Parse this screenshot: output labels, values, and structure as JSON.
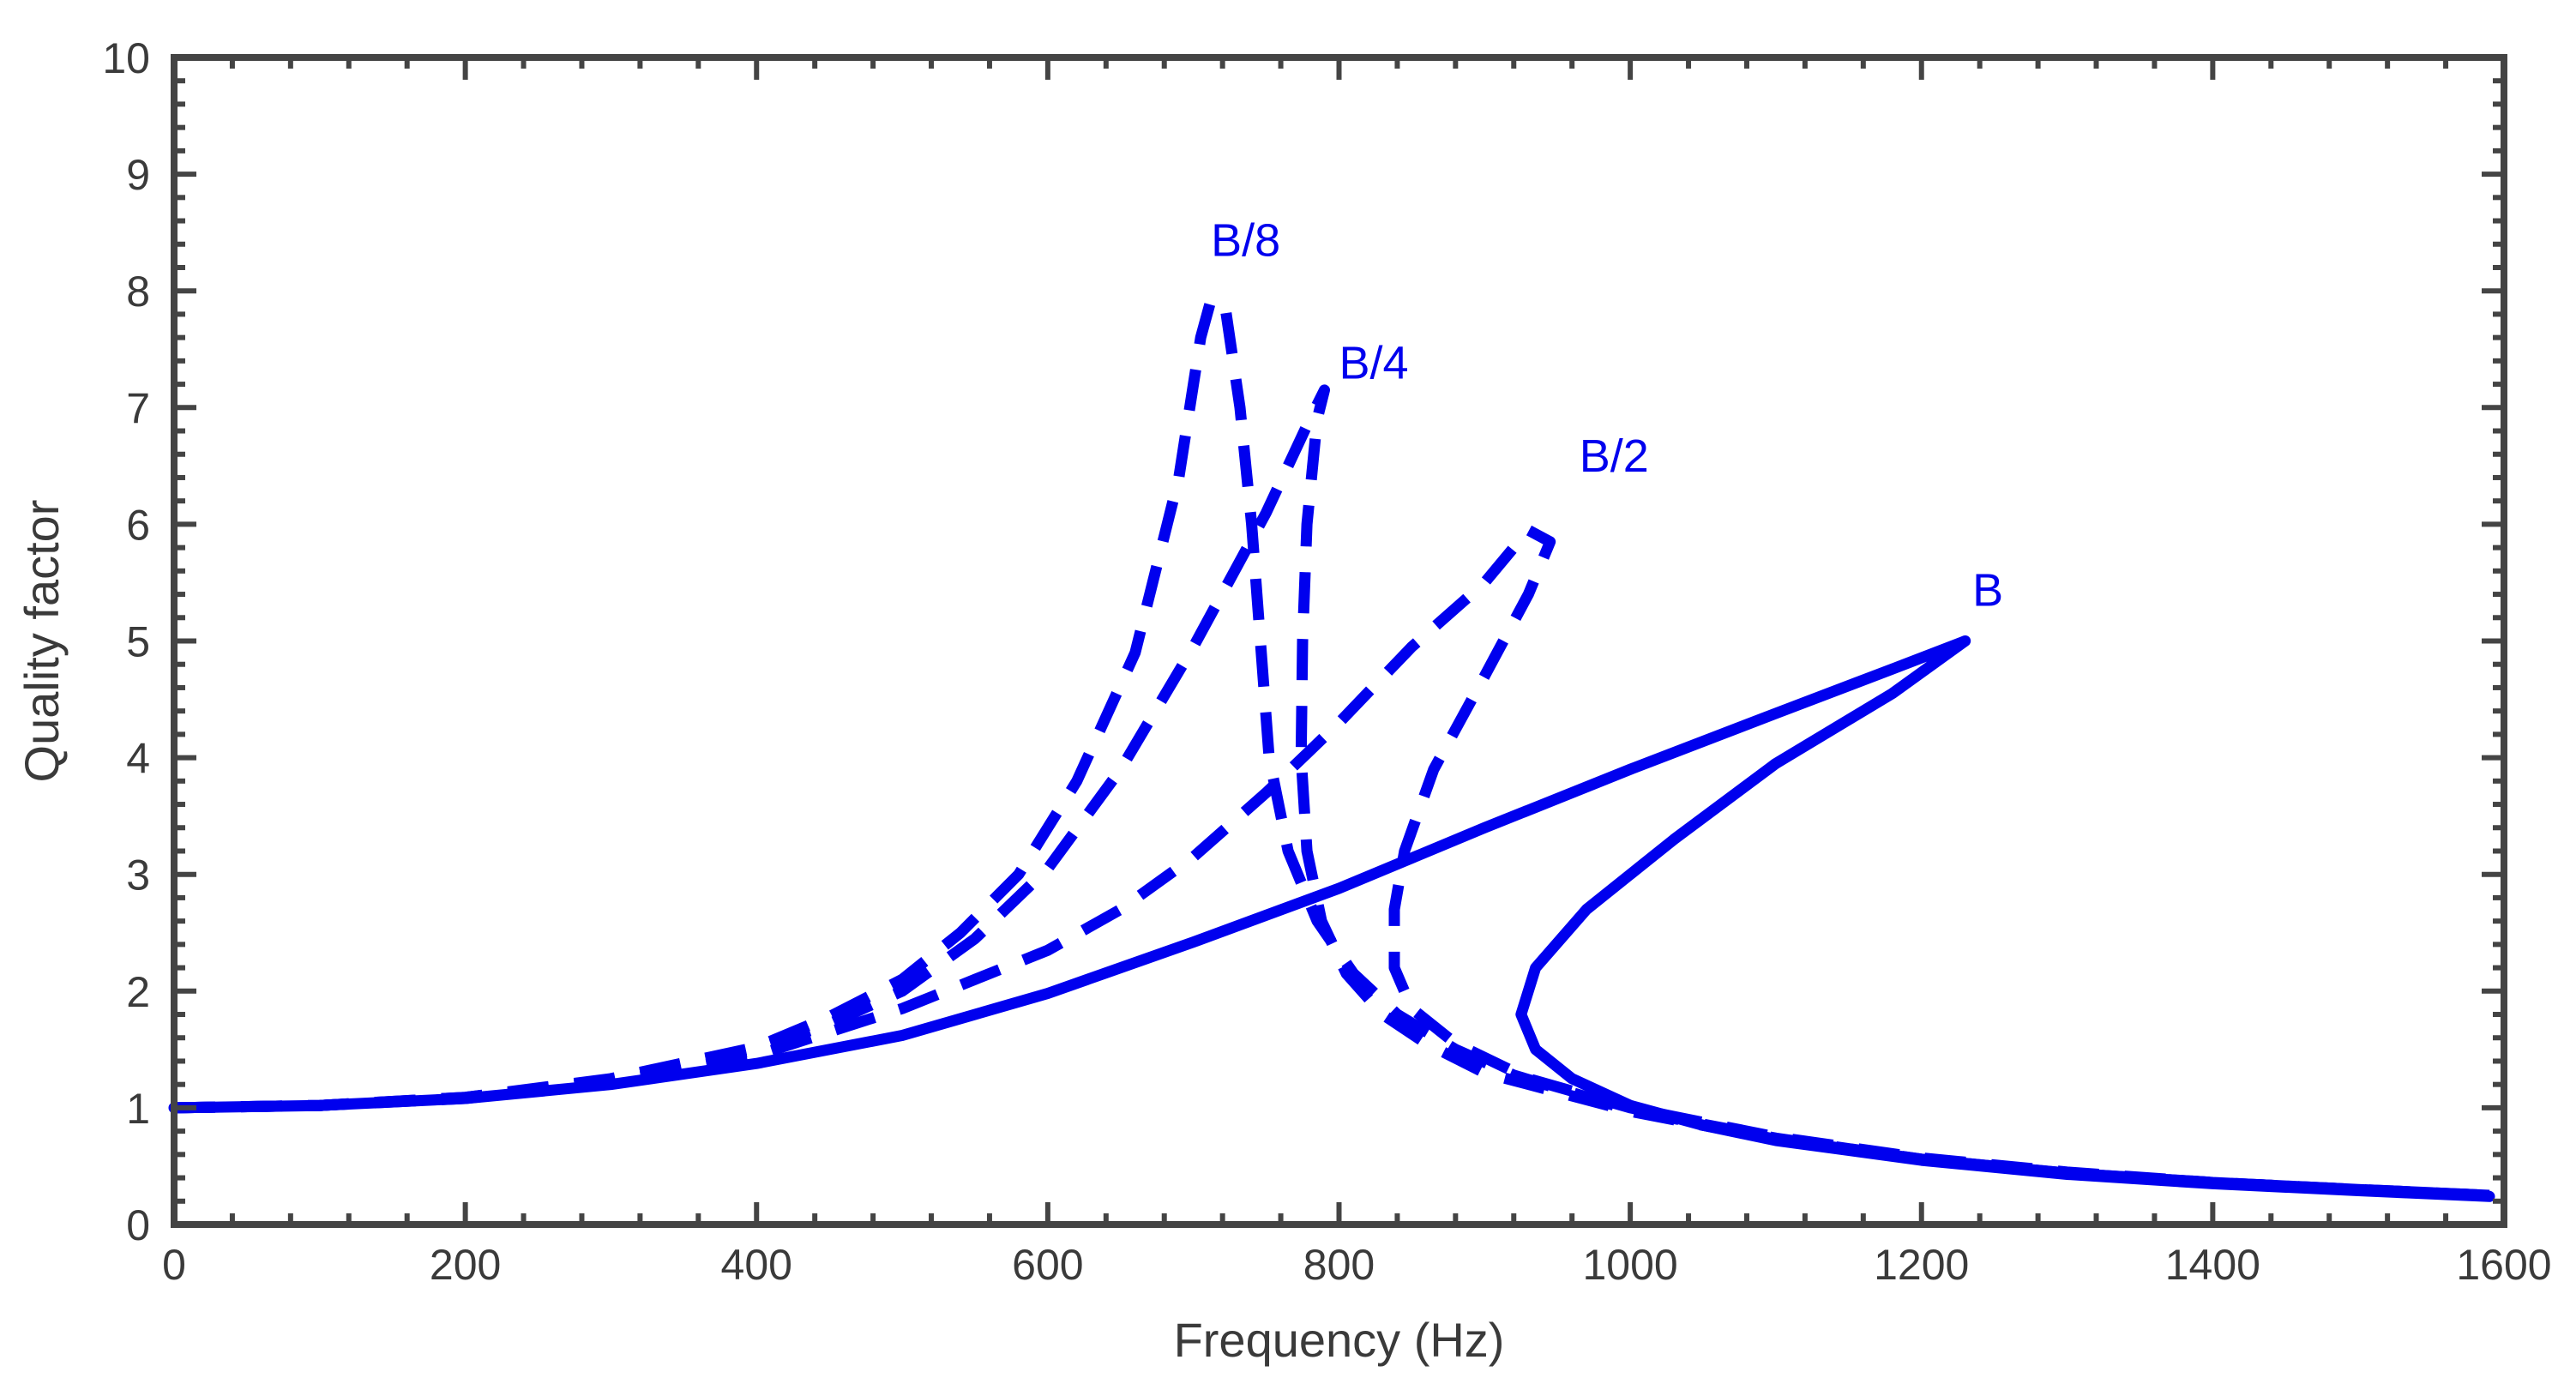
{
  "chart_data": {
    "type": "line",
    "title": "",
    "xlabel": "Frequency (Hz)",
    "ylabel": "Quality factor",
    "xlim": [
      0,
      1600
    ],
    "ylim": [
      0,
      10
    ],
    "x_ticks": [
      0,
      200,
      400,
      600,
      800,
      1000,
      1200,
      1400,
      1600
    ],
    "y_ticks": [
      0,
      1,
      2,
      3,
      4,
      5,
      6,
      7,
      8,
      9,
      10
    ],
    "grid": false,
    "legend": "none",
    "color": "#0000ee",
    "axis_color": "#444444",
    "series": [
      {
        "name": "B",
        "style": "solid",
        "label_at": [
          1235,
          5.3
        ],
        "points": [
          [
            0,
            1.0
          ],
          [
            100,
            1.02
          ],
          [
            200,
            1.08
          ],
          [
            300,
            1.2
          ],
          [
            400,
            1.38
          ],
          [
            500,
            1.62
          ],
          [
            600,
            1.98
          ],
          [
            700,
            2.42
          ],
          [
            800,
            2.88
          ],
          [
            900,
            3.4
          ],
          [
            1000,
            3.9
          ],
          [
            1100,
            4.38
          ],
          [
            1180,
            4.76
          ],
          [
            1230,
            5.0
          ],
          [
            1180,
            4.55
          ],
          [
            1100,
            3.95
          ],
          [
            1030,
            3.3
          ],
          [
            970,
            2.7
          ],
          [
            935,
            2.2
          ],
          [
            925,
            1.8
          ],
          [
            935,
            1.5
          ],
          [
            960,
            1.25
          ],
          [
            1000,
            1.02
          ],
          [
            1050,
            0.85
          ],
          [
            1100,
            0.72
          ],
          [
            1200,
            0.55
          ],
          [
            1300,
            0.43
          ],
          [
            1400,
            0.35
          ],
          [
            1500,
            0.29
          ],
          [
            1590,
            0.24
          ]
        ]
      },
      {
        "name": "B/2",
        "style": "dashed",
        "label_at": [
          965,
          6.45
        ],
        "points": [
          [
            0,
            1.0
          ],
          [
            100,
            1.02
          ],
          [
            200,
            1.08
          ],
          [
            300,
            1.22
          ],
          [
            400,
            1.45
          ],
          [
            500,
            1.85
          ],
          [
            550,
            2.1
          ],
          [
            600,
            2.35
          ],
          [
            650,
            2.7
          ],
          [
            700,
            3.15
          ],
          [
            750,
            3.7
          ],
          [
            800,
            4.3
          ],
          [
            850,
            4.95
          ],
          [
            900,
            5.5
          ],
          [
            930,
            5.95
          ],
          [
            945,
            5.85
          ],
          [
            930,
            5.4
          ],
          [
            900,
            4.7
          ],
          [
            865,
            3.9
          ],
          [
            845,
            3.2
          ],
          [
            838,
            2.7
          ],
          [
            838,
            2.2
          ],
          [
            850,
            1.85
          ],
          [
            880,
            1.55
          ],
          [
            930,
            1.25
          ],
          [
            1000,
            1.0
          ],
          [
            1100,
            0.75
          ],
          [
            1200,
            0.57
          ],
          [
            1300,
            0.45
          ],
          [
            1400,
            0.36
          ],
          [
            1500,
            0.3
          ],
          [
            1590,
            0.25
          ]
        ]
      },
      {
        "name": "B/4",
        "style": "dashed",
        "label_at": [
          800,
          7.25
        ],
        "points": [
          [
            0,
            1.0
          ],
          [
            100,
            1.02
          ],
          [
            200,
            1.09
          ],
          [
            300,
            1.24
          ],
          [
            400,
            1.5
          ],
          [
            450,
            1.72
          ],
          [
            500,
            2.0
          ],
          [
            550,
            2.45
          ],
          [
            600,
            3.05
          ],
          [
            650,
            3.9
          ],
          [
            700,
            4.95
          ],
          [
            750,
            6.1
          ],
          [
            780,
            6.9
          ],
          [
            790,
            7.15
          ],
          [
            785,
            6.9
          ],
          [
            778,
            6.0
          ],
          [
            775,
            5.0
          ],
          [
            774,
            4.0
          ],
          [
            778,
            3.2
          ],
          [
            788,
            2.6
          ],
          [
            805,
            2.15
          ],
          [
            830,
            1.8
          ],
          [
            860,
            1.55
          ],
          [
            900,
            1.3
          ],
          [
            1000,
            0.97
          ],
          [
            1100,
            0.73
          ],
          [
            1200,
            0.56
          ],
          [
            1300,
            0.44
          ],
          [
            1400,
            0.36
          ],
          [
            1500,
            0.3
          ],
          [
            1590,
            0.25
          ]
        ]
      },
      {
        "name": "B/8",
        "style": "dashed",
        "label_at": [
          712,
          8.3
        ],
        "points": [
          [
            0,
            1.0
          ],
          [
            100,
            1.02
          ],
          [
            200,
            1.09
          ],
          [
            300,
            1.25
          ],
          [
            400,
            1.52
          ],
          [
            450,
            1.78
          ],
          [
            500,
            2.1
          ],
          [
            540,
            2.5
          ],
          [
            580,
            3.0
          ],
          [
            620,
            3.8
          ],
          [
            660,
            4.9
          ],
          [
            690,
            6.4
          ],
          [
            705,
            7.6
          ],
          [
            712,
            7.92
          ],
          [
            722,
            7.85
          ],
          [
            732,
            7.0
          ],
          [
            740,
            6.0
          ],
          [
            746,
            5.0
          ],
          [
            752,
            4.0
          ],
          [
            765,
            3.2
          ],
          [
            785,
            2.6
          ],
          [
            810,
            2.15
          ],
          [
            840,
            1.8
          ],
          [
            880,
            1.5
          ],
          [
            920,
            1.28
          ],
          [
            1000,
            0.98
          ],
          [
            1100,
            0.74
          ],
          [
            1200,
            0.56
          ],
          [
            1300,
            0.44
          ],
          [
            1400,
            0.36
          ],
          [
            1500,
            0.3
          ],
          [
            1590,
            0.25
          ]
        ]
      }
    ]
  }
}
